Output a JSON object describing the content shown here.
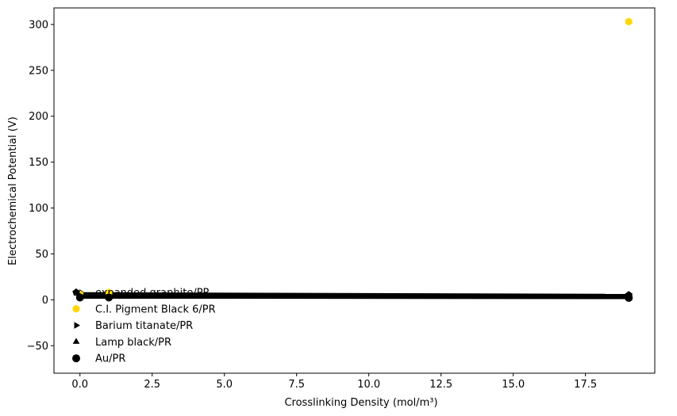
{
  "chart_data": {
    "type": "scatter",
    "title": "",
    "xlabel": "Crosslinking Density (mol/m³)",
    "ylabel": "Electrochemical Potential (V)",
    "xlim": [
      -0.9,
      19.9
    ],
    "ylim": [
      -80,
      318
    ],
    "xticks": [
      0.0,
      2.5,
      5.0,
      7.5,
      10.0,
      12.5,
      15.0,
      17.5
    ],
    "xtick_labels": [
      "0.0",
      "2.5",
      "5.0",
      "7.5",
      "10.0",
      "12.5",
      "15.0",
      "17.5"
    ],
    "yticks": [
      -50,
      0,
      50,
      100,
      150,
      200,
      250,
      300
    ],
    "ytick_labels": [
      "−50",
      "0",
      "50",
      "100",
      "150",
      "200",
      "250",
      "300"
    ],
    "grid": false,
    "legend_position": "lower-left",
    "series": [
      {
        "name": "expanded graphite/PR",
        "marker": "pentagon",
        "color": "#000000",
        "points": [
          [
            0.0,
            7.0
          ],
          [
            19.0,
            5.2
          ]
        ],
        "line": true
      },
      {
        "name": "C.I. Pigment Black 6/PR",
        "marker": "hexagon",
        "color": "#FFD700",
        "points": [
          [
            0.0,
            6.0
          ],
          [
            1.0,
            8.0
          ],
          [
            19.0,
            303.0
          ]
        ],
        "line": false
      },
      {
        "name": "Barium titanate/PR",
        "marker": "triangle-right",
        "color": "#000000",
        "points": [
          [
            0.0,
            4.5
          ],
          [
            19.0,
            4.5
          ]
        ],
        "line": true
      },
      {
        "name": "Lamp black/PR",
        "marker": "triangle-up",
        "color": "#000000",
        "points": [
          [
            0.0,
            3.5
          ],
          [
            19.0,
            3.0
          ]
        ],
        "line": true
      },
      {
        "name": "Au/PR",
        "marker": "circle",
        "color": "#000000",
        "points": [
          [
            0.0,
            2.5
          ],
          [
            1.0,
            2.5
          ],
          [
            19.0,
            2.0
          ]
        ],
        "line": true
      }
    ]
  }
}
